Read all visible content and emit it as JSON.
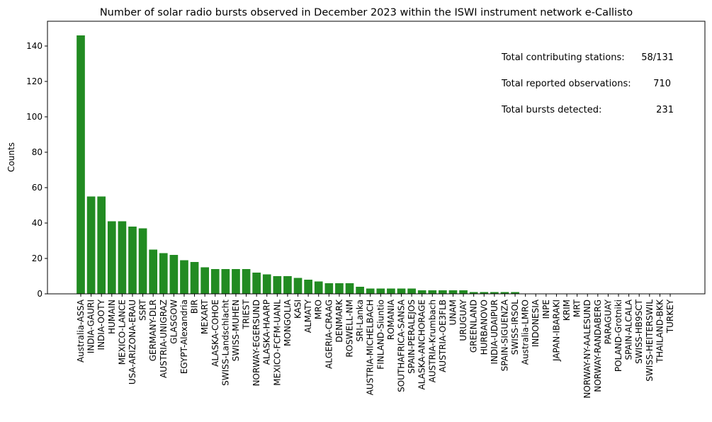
{
  "chart_data": {
    "type": "bar",
    "title": "Number of solar radio bursts observed in December 2023 within the ISWI instrument network e-Callisto",
    "xlabel": "",
    "ylabel": "Counts",
    "ylim": [
      0,
      154
    ],
    "yticks": [
      0,
      20,
      40,
      60,
      80,
      100,
      120,
      140
    ],
    "grid": false,
    "bar_color": "#228b22",
    "categories": [
      "Australia-ASSA",
      "INDIA-GAURI",
      "INDIA-OOTY",
      "HUMAIN",
      "MEXICO-LANCE",
      "USA-ARIZONA-ERAU",
      "SSRT",
      "GERMANY-DLR",
      "AUSTRIA-UNIGRAZ",
      "GLASGOW",
      "EGYPT-Alexandria",
      "BIR",
      "MEXART",
      "ALASKA-COHOE",
      "SWISS-Landschlacht",
      "SWISS-MUHEN",
      "TRIEST",
      "NORWAY-EGERSUND",
      "ALASKA-HAARP",
      "MEXICO-FCFM-UANL",
      "MONGOLIA",
      "KASI",
      "ALMATY",
      "MRO",
      "ALGERIA-CRAAG",
      "DENMARK",
      "ROSWELL-NM",
      "SRI-Lanka",
      "AUSTRIA-MICHELBACH",
      "FINLAND-Siuntio",
      "ROMANIA",
      "SOUTHAFRICA-SANSA",
      "SPAIN-PERALEJOS",
      "ALASKA-ANCHORAGE",
      "AUSTRIA-Krumbach",
      "AUSTRIA-OE3FLB",
      "UNAM",
      "URUGUAY",
      "GREENLAND",
      "HURBANOVO",
      "INDIA-UDAIPUR",
      "SPAIN-SIGUENZA",
      "SWISS-IRSOL",
      "Australia-LMRO",
      "INDONESIA",
      "INPE",
      "JAPAN-IBARAKI",
      "KRIM",
      "MRT",
      "NORWAY-NY-AALESUND",
      "NORWAY-RANDABERG",
      "PARAGUAY",
      "POLAND-Grotniki",
      "SPAIN-ALCALA",
      "SWISS-HB9SCT",
      "SWISS-HEITERSWIL",
      "THAILAND-BKK",
      "TURKEY"
    ],
    "values": [
      146,
      55,
      55,
      41,
      41,
      38,
      37,
      25,
      23,
      22,
      19,
      18,
      15,
      14,
      14,
      14,
      14,
      12,
      11,
      10,
      10,
      9,
      8,
      7,
      6,
      6,
      6,
      4,
      3,
      3,
      3,
      3,
      3,
      2,
      2,
      2,
      2,
      2,
      1,
      1,
      1,
      1,
      1,
      0,
      0,
      0,
      0,
      0,
      0,
      0,
      0,
      0,
      0,
      0,
      0,
      0,
      0,
      0
    ]
  },
  "stats": {
    "stations_label": "Total contributing stations:",
    "stations_value": "58/131",
    "observations_label": "Total reported observations:",
    "observations_value": "710",
    "bursts_label": "Total bursts detected:",
    "bursts_value": "231"
  }
}
